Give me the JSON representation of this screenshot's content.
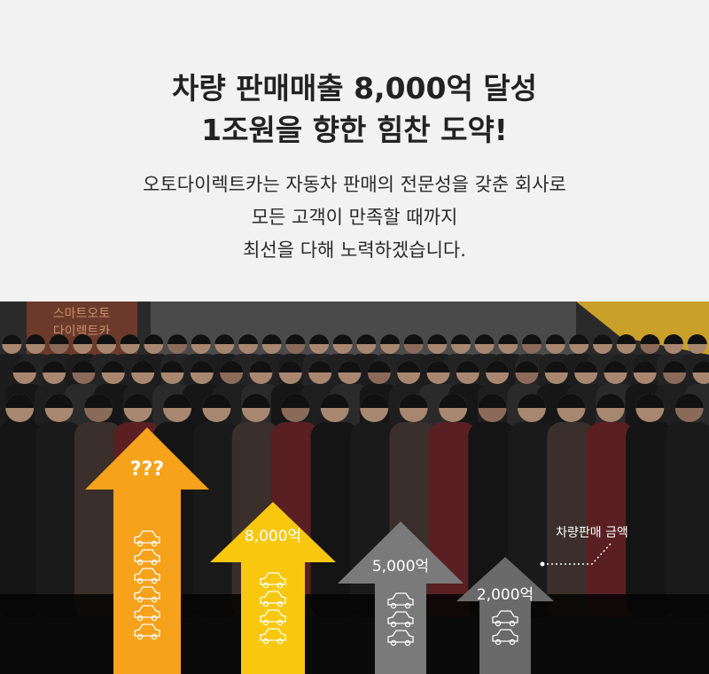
{
  "headline": {
    "line1": "차량 판매매출 8,000억 달성",
    "line2": "1조원을 향한 힘찬 도약!"
  },
  "subtext": {
    "line1": "오토다이렉트카는 자동차 판매의 전문성을 갖춘 회사로",
    "line2": "모든 고객이 만족할 때까지",
    "line3": "최선을 다해 노력하겠습니다."
  },
  "banner_text": {
    "line1": "스마트오토",
    "line2": "다이렉트카"
  },
  "callout": "차량판매 금액",
  "colors": {
    "orange": "#f7a21b",
    "yellow": "#f9c80e",
    "gray": "#7a7a7a",
    "dark_gray": "#6a6a6a"
  },
  "chart_data": {
    "type": "bar",
    "ylabel": "차량판매 금액",
    "categories": [
      "2,000억",
      "5,000억",
      "8,000억",
      "???"
    ],
    "values": [
      2000,
      5000,
      8000,
      null
    ],
    "labels": [
      "2,000억",
      "5,000억",
      "8,000억",
      "???"
    ],
    "car_icon_counts": [
      2,
      3,
      4,
      6
    ]
  }
}
